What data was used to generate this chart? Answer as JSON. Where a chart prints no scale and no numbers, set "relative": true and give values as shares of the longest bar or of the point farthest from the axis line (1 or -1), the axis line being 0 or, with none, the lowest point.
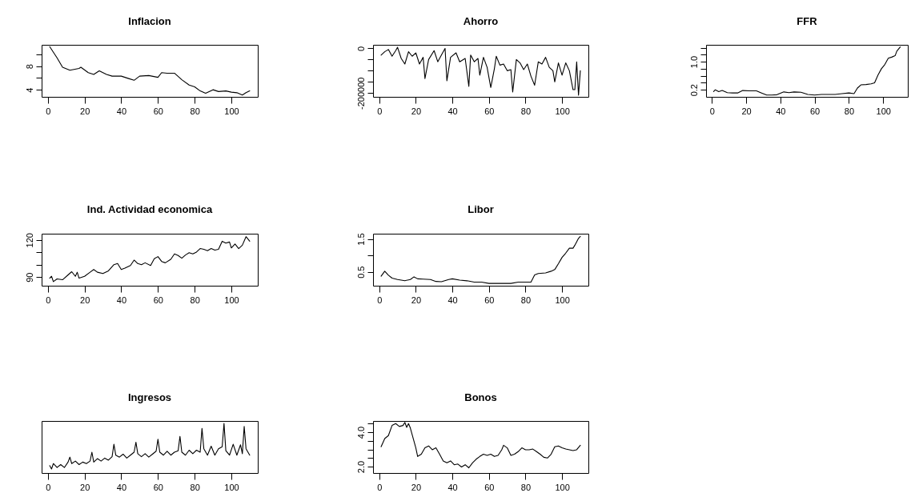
{
  "chart_data": [
    {
      "type": "line",
      "title": "Inflacion",
      "xlim": [
        -3.4,
        114.4
      ],
      "xticks": [
        0,
        20,
        40,
        60,
        80,
        100
      ],
      "ylim": [
        2.8,
        11.6
      ],
      "yticks": [
        4,
        {
          "value": 6,
          "label": null
        },
        8,
        {
          "value": 10,
          "label": null
        }
      ],
      "x": [
        1,
        5,
        8,
        12,
        17,
        18,
        22,
        25,
        28,
        32,
        35,
        40,
        44,
        47,
        50,
        55,
        60,
        62,
        65,
        69,
        73,
        77,
        80,
        83,
        86,
        90,
        93,
        97,
        100,
        103,
        106,
        108,
        110
      ],
      "series": [
        {
          "color": "#000000",
          "values": [
            11.3,
            9.4,
            7.8,
            7.3,
            7.6,
            7.8,
            6.9,
            6.6,
            7.2,
            6.6,
            6.3,
            6.3,
            5.9,
            5.6,
            6.3,
            6.4,
            6.1,
            6.9,
            6.8,
            6.8,
            5.7,
            4.8,
            4.5,
            3.8,
            3.4,
            4.0,
            3.7,
            3.8,
            3.6,
            3.5,
            3.1,
            3.5,
            3.8
          ]
        }
      ]
    },
    {
      "type": "line",
      "title": "Ahorro",
      "xlim": [
        -3.4,
        114.4
      ],
      "xticks": [
        0,
        20,
        40,
        60,
        80,
        100
      ],
      "ylim": [
        -217000,
        16000
      ],
      "yticks": [
        0,
        {
          "value": -50000,
          "label": null
        },
        {
          "value": -100000,
          "label": null
        },
        {
          "value": -150000,
          "label": null
        },
        -200000
      ],
      "x": [
        1,
        3,
        5,
        7,
        9,
        10,
        12,
        14,
        16,
        18,
        20,
        22,
        24,
        25,
        27,
        30,
        32,
        34,
        36,
        37,
        39,
        42,
        44,
        47,
        49,
        50,
        52,
        54,
        55,
        57,
        59,
        61,
        63,
        64,
        66,
        68,
        70,
        72,
        73,
        75,
        77,
        79,
        81,
        83,
        85,
        87,
        89,
        91,
        93,
        95,
        96,
        98,
        100,
        102,
        104,
        106,
        107,
        108,
        109,
        110
      ],
      "series": [
        {
          "color": "#000000",
          "values": [
            -30000,
            -15000,
            -5000,
            -35000,
            -10000,
            5000,
            -45000,
            -70000,
            -15000,
            -35000,
            -20000,
            -70000,
            -40000,
            -135000,
            -50000,
            -10000,
            -60000,
            -30000,
            0,
            -145000,
            -40000,
            -20000,
            -60000,
            -45000,
            -170000,
            -30000,
            -60000,
            -45000,
            -120000,
            -40000,
            -85000,
            -175000,
            -90000,
            -35000,
            -75000,
            -70000,
            -100000,
            -95000,
            -195000,
            -50000,
            -65000,
            -95000,
            -70000,
            -125000,
            -165000,
            -60000,
            -70000,
            -40000,
            -85000,
            -100000,
            -150000,
            -65000,
            -120000,
            -65000,
            -100000,
            -185000,
            -185000,
            -60000,
            -210000,
            -100000
          ]
        }
      ]
    },
    {
      "type": "line",
      "title": "FFR",
      "xlim": [
        -3.4,
        114.4
      ],
      "xticks": [
        0,
        20,
        40,
        60,
        80,
        100
      ],
      "ylim": [
        0.0,
        1.48
      ],
      "yticks": [
        {
          "value": 0.2,
          "label": "0.2"
        },
        {
          "value": 0.4,
          "label": null
        },
        {
          "value": 0.6,
          "label": null
        },
        {
          "value": 0.8,
          "label": null
        },
        {
          "value": 1.0,
          "label": "1.0"
        },
        {
          "value": 1.2,
          "label": null
        },
        {
          "value": 1.4,
          "label": null
        }
      ],
      "x": [
        1,
        2,
        4,
        6,
        9,
        12,
        15,
        18,
        22,
        26,
        29,
        32,
        35,
        38,
        42,
        45,
        48,
        52,
        56,
        60,
        64,
        68,
        72,
        76,
        80,
        83,
        85,
        87,
        90,
        93,
        95,
        97,
        99,
        101,
        103,
        105,
        107,
        108,
        110
      ],
      "series": [
        {
          "color": "#000000",
          "values": [
            0.15,
            0.2,
            0.15,
            0.18,
            0.12,
            0.11,
            0.11,
            0.18,
            0.17,
            0.17,
            0.11,
            0.05,
            0.05,
            0.06,
            0.14,
            0.12,
            0.14,
            0.13,
            0.07,
            0.05,
            0.07,
            0.07,
            0.07,
            0.09,
            0.11,
            0.09,
            0.25,
            0.34,
            0.35,
            0.37,
            0.4,
            0.62,
            0.8,
            0.92,
            1.1,
            1.13,
            1.17,
            1.3,
            1.42
          ]
        }
      ]
    },
    {
      "type": "line",
      "title": "Ind. Actividad economica",
      "xlim": [
        -3.4,
        114.4
      ],
      "xticks": [
        0,
        20,
        40,
        60,
        80,
        100
      ],
      "ylim": [
        83,
        125
      ],
      "yticks": [
        90,
        {
          "value": 100,
          "label": null
        },
        {
          "value": 110,
          "label": null
        },
        120
      ],
      "x": [
        1,
        2,
        3,
        5,
        8,
        11,
        13,
        15,
        16,
        17,
        20,
        23,
        25,
        27,
        30,
        33,
        36,
        38,
        40,
        42,
        45,
        47,
        49,
        51,
        53,
        56,
        58,
        60,
        62,
        64,
        67,
        69,
        71,
        73,
        75,
        77,
        79,
        81,
        83,
        85,
        87,
        89,
        91,
        93,
        95,
        97,
        99,
        100,
        102,
        104,
        106,
        108,
        110
      ],
      "series": [
        {
          "color": "#000000",
          "values": [
            89.1,
            90.6,
            86.3,
            88.5,
            87.8,
            91.7,
            94.3,
            90.6,
            93.9,
            89.1,
            90.6,
            93.9,
            96.1,
            93.9,
            92.8,
            95.0,
            100.0,
            100.9,
            96.1,
            97.2,
            99.3,
            103.7,
            100.9,
            100.0,
            101.5,
            99.3,
            104.8,
            106.5,
            102.6,
            101.5,
            104.3,
            108.7,
            107.4,
            105.2,
            107.8,
            109.6,
            108.7,
            110.2,
            113.0,
            112.4,
            111.3,
            113.0,
            111.7,
            112.4,
            118.9,
            117.4,
            118.3,
            113.5,
            116.7,
            113.0,
            115.7,
            122.6,
            118.9
          ]
        }
      ]
    },
    {
      "type": "line",
      "title": "Libor",
      "xlim": [
        -3.4,
        114.4
      ],
      "xticks": [
        0,
        20,
        40,
        60,
        80,
        100
      ],
      "ylim": [
        0.08,
        1.66
      ],
      "yticks": [
        0.5,
        {
          "value": 1.0,
          "label": null
        },
        1.5
      ],
      "x": [
        1,
        3,
        5,
        7,
        10,
        14,
        17,
        19,
        21,
        24,
        28,
        31,
        34,
        38,
        40,
        44,
        48,
        52,
        56,
        60,
        64,
        68,
        72,
        76,
        80,
        83,
        85,
        87,
        91,
        94,
        96,
        98,
        100,
        102,
        104,
        106,
        107,
        109,
        110
      ],
      "series": [
        {
          "color": "#000000",
          "values": [
            0.37,
            0.52,
            0.4,
            0.31,
            0.27,
            0.23,
            0.27,
            0.35,
            0.29,
            0.28,
            0.27,
            0.21,
            0.2,
            0.27,
            0.29,
            0.25,
            0.23,
            0.19,
            0.19,
            0.15,
            0.15,
            0.15,
            0.15,
            0.19,
            0.19,
            0.19,
            0.41,
            0.45,
            0.47,
            0.52,
            0.57,
            0.75,
            0.94,
            1.07,
            1.22,
            1.22,
            1.31,
            1.52,
            1.58
          ]
        }
      ]
    },
    {
      "type": "line",
      "title": "Ingresos",
      "relative": true,
      "xlim": [
        -3.4,
        114.4
      ],
      "xticks": [
        0,
        20,
        40,
        60,
        80,
        100
      ],
      "x": [
        1,
        2,
        3,
        5,
        7,
        9,
        11,
        12,
        13,
        15,
        17,
        19,
        21,
        23,
        24,
        25,
        27,
        29,
        31,
        33,
        35,
        36,
        37,
        39,
        41,
        43,
        45,
        47,
        48,
        49,
        51,
        53,
        55,
        57,
        59,
        60,
        61,
        63,
        65,
        67,
        69,
        71,
        72,
        73,
        75,
        77,
        79,
        81,
        83,
        84,
        85,
        87,
        89,
        91,
        93,
        95,
        96,
        97,
        99,
        101,
        103,
        105,
        106,
        107,
        108,
        110
      ],
      "series": [
        {
          "color": "#000000",
          "values": [
            0.15,
            0.08,
            0.19,
            0.11,
            0.17,
            0.11,
            0.22,
            0.32,
            0.19,
            0.24,
            0.17,
            0.22,
            0.19,
            0.24,
            0.42,
            0.22,
            0.29,
            0.24,
            0.3,
            0.26,
            0.33,
            0.58,
            0.36,
            0.32,
            0.38,
            0.3,
            0.36,
            0.42,
            0.62,
            0.39,
            0.33,
            0.39,
            0.32,
            0.38,
            0.44,
            0.68,
            0.42,
            0.36,
            0.44,
            0.36,
            0.42,
            0.45,
            0.74,
            0.42,
            0.36,
            0.46,
            0.39,
            0.46,
            0.42,
            0.9,
            0.49,
            0.36,
            0.54,
            0.36,
            0.49,
            0.53,
            1.0,
            0.45,
            0.36,
            0.58,
            0.36,
            0.57,
            0.39,
            0.94,
            0.49,
            0.36
          ]
        }
      ]
    },
    {
      "type": "line",
      "title": "Bonos",
      "xlim": [
        -3.4,
        114.4
      ],
      "xticks": [
        0,
        20,
        40,
        60,
        80,
        100
      ],
      "ylim": [
        1.63,
        4.65
      ],
      "yticks": [
        {
          "value": 2.0,
          "label": "2.0"
        },
        {
          "value": 2.5,
          "label": null
        },
        {
          "value": 3.0,
          "label": null
        },
        {
          "value": 3.5,
          "label": null
        },
        {
          "value": 4.0,
          "label": "4.0"
        },
        {
          "value": 4.5,
          "label": null
        }
      ],
      "x": [
        1,
        3,
        5,
        7,
        9,
        11,
        13,
        14,
        15,
        16,
        17,
        18,
        20,
        21,
        23,
        25,
        27,
        29,
        31,
        33,
        35,
        37,
        39,
        41,
        43,
        45,
        47,
        49,
        51,
        53,
        55,
        57,
        59,
        61,
        63,
        65,
        67,
        68,
        70,
        72,
        74,
        76,
        78,
        80,
        82,
        84,
        86,
        88,
        90,
        92,
        94,
        96,
        98,
        100,
        102,
        104,
        106,
        108,
        110
      ],
      "series": [
        {
          "color": "#000000",
          "values": [
            3.15,
            3.63,
            3.8,
            4.39,
            4.5,
            4.33,
            4.39,
            4.57,
            4.28,
            4.5,
            4.24,
            3.85,
            3.09,
            2.59,
            2.72,
            3.09,
            3.2,
            2.98,
            3.09,
            2.72,
            2.33,
            2.22,
            2.33,
            2.11,
            2.15,
            1.98,
            2.11,
            1.93,
            2.22,
            2.43,
            2.59,
            2.72,
            2.65,
            2.72,
            2.59,
            2.65,
            2.98,
            3.24,
            3.09,
            2.65,
            2.72,
            2.87,
            3.09,
            2.98,
            2.98,
            3.02,
            2.87,
            2.72,
            2.54,
            2.5,
            2.72,
            3.15,
            3.2,
            3.09,
            3.02,
            2.98,
            2.93,
            2.98,
            3.24
          ]
        }
      ]
    }
  ]
}
